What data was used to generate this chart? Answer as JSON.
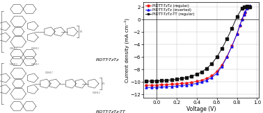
{
  "xlabel": "Voltage (V)",
  "ylabel": "Current density (mA cm⁻²)",
  "xlim": [
    -0.13,
    1.02
  ],
  "ylim": [
    -12.5,
    2.8
  ],
  "yticks": [
    2,
    0,
    -2,
    -4,
    -6,
    -8,
    -10,
    -12
  ],
  "xticks": [
    0.0,
    0.2,
    0.4,
    0.6,
    0.8,
    1.0
  ],
  "legend": [
    {
      "label": "PIDTT-TzTz (regular)",
      "color": "#ee1111",
      "marker": "o"
    },
    {
      "label": "PIDTT-TzTz (inverted)",
      "color": "#1111ee",
      "marker": "^"
    },
    {
      "label": "PIDTT-TzTz-TT (regular)",
      "color": "#111111",
      "marker": "s"
    }
  ],
  "red_v": [
    -0.1,
    -0.05,
    0.0,
    0.05,
    0.1,
    0.15,
    0.2,
    0.25,
    0.3,
    0.35,
    0.4,
    0.45,
    0.5,
    0.55,
    0.6,
    0.65,
    0.7,
    0.75,
    0.8,
    0.83,
    0.85,
    0.87,
    0.88,
    0.9,
    0.93
  ],
  "red_j": [
    -10.5,
    -10.5,
    -10.47,
    -10.43,
    -10.38,
    -10.33,
    -10.28,
    -10.22,
    -10.13,
    -10.02,
    -9.88,
    -9.68,
    -9.4,
    -9.0,
    -8.3,
    -7.3,
    -5.9,
    -4.2,
    -2.3,
    -0.9,
    0.0,
    0.8,
    1.2,
    1.8,
    2.2
  ],
  "blue_v": [
    -0.1,
    -0.05,
    0.0,
    0.05,
    0.1,
    0.15,
    0.2,
    0.25,
    0.3,
    0.35,
    0.4,
    0.45,
    0.5,
    0.55,
    0.6,
    0.65,
    0.7,
    0.75,
    0.8,
    0.83,
    0.85,
    0.87,
    0.88,
    0.9,
    0.93
  ],
  "blue_j": [
    -10.85,
    -10.85,
    -10.82,
    -10.77,
    -10.72,
    -10.67,
    -10.62,
    -10.55,
    -10.46,
    -10.35,
    -10.2,
    -9.98,
    -9.68,
    -9.25,
    -8.6,
    -7.5,
    -6.0,
    -4.25,
    -2.3,
    -0.85,
    0.05,
    0.85,
    1.25,
    1.85,
    2.3
  ],
  "black_v": [
    -0.1,
    -0.05,
    0.0,
    0.05,
    0.1,
    0.15,
    0.2,
    0.25,
    0.3,
    0.35,
    0.4,
    0.45,
    0.5,
    0.55,
    0.6,
    0.65,
    0.7,
    0.75,
    0.8,
    0.85,
    0.87,
    0.88,
    0.9,
    0.92,
    0.93
  ],
  "black_j": [
    -9.85,
    -9.82,
    -9.8,
    -9.75,
    -9.7,
    -9.63,
    -9.55,
    -9.43,
    -9.27,
    -9.05,
    -8.75,
    -8.35,
    -7.8,
    -7.05,
    -6.0,
    -4.65,
    -3.1,
    -1.4,
    0.45,
    1.8,
    2.0,
    2.1,
    2.12,
    2.08,
    2.05
  ],
  "label1": "PIDTT-TzTz",
  "label2": "PIDTT-TzTz-TT",
  "background_color": "#ffffff"
}
